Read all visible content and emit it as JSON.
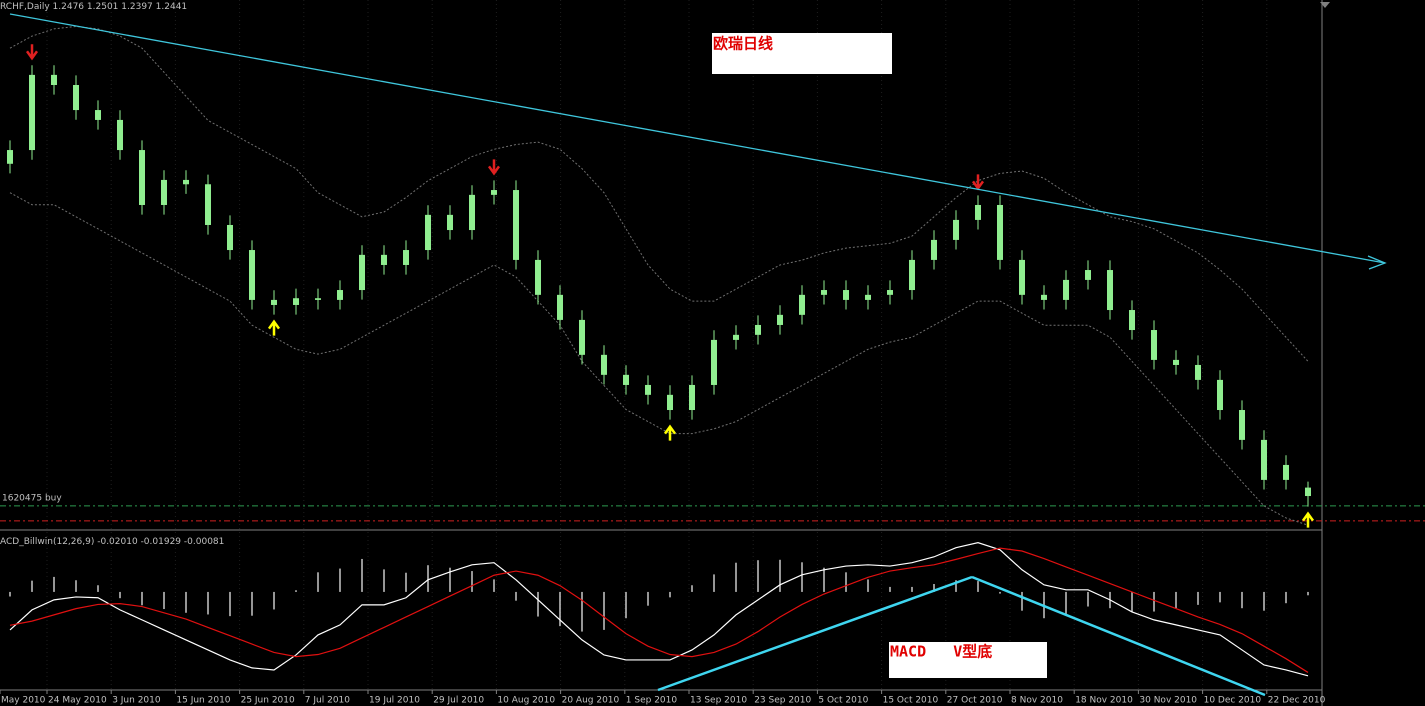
{
  "chart_data": [
    {
      "type": "candlestick",
      "title": "RCHF,Daily",
      "color": "#90ee90",
      "ylim": [
        1.23,
        1.445
      ],
      "open": [
        1.382,
        1.3877,
        1.4189,
        1.4147,
        1.4043,
        1.4002,
        1.3877,
        1.3649,
        1.3753,
        1.3735,
        1.3566,
        1.3462,
        1.3255,
        1.3234,
        1.3262,
        1.3255,
        1.3296,
        1.3442,
        1.34,
        1.3462,
        1.3608,
        1.3545,
        1.3691,
        1.3711,
        1.3421,
        1.3276,
        1.3172,
        1.3027,
        1.2944,
        1.2902,
        1.2861,
        1.2798,
        1.2902,
        1.3089,
        1.311,
        1.3151,
        1.3193,
        1.3276,
        1.3296,
        1.3255,
        1.3276,
        1.3296,
        1.3421,
        1.3504,
        1.3587,
        1.3649,
        1.3421,
        1.3276,
        1.3255,
        1.3338,
        1.3379,
        1.3213,
        1.313,
        1.3006,
        1.2985,
        1.2923,
        1.2798,
        1.2674,
        1.2508,
        1.2476
      ],
      "high": [
        1.3917,
        1.4229,
        1.4229,
        1.4187,
        1.4083,
        1.4042,
        1.3917,
        1.3793,
        1.3793,
        1.3775,
        1.3606,
        1.3502,
        1.3295,
        1.3302,
        1.3302,
        1.3336,
        1.3482,
        1.3482,
        1.3502,
        1.3648,
        1.3648,
        1.3731,
        1.3751,
        1.3751,
        1.3461,
        1.3316,
        1.3212,
        1.3067,
        1.2984,
        1.2942,
        1.2901,
        1.2942,
        1.3129,
        1.315,
        1.3191,
        1.3233,
        1.3316,
        1.3336,
        1.3336,
        1.3316,
        1.3336,
        1.3461,
        1.3544,
        1.3627,
        1.3689,
        1.3689,
        1.3461,
        1.3316,
        1.3378,
        1.3419,
        1.3419,
        1.3253,
        1.317,
        1.3046,
        1.3025,
        1.2963,
        1.2838,
        1.2714,
        1.261,
        1.2501
      ],
      "low": [
        1.378,
        1.3837,
        1.4107,
        1.4003,
        1.3962,
        1.3837,
        1.3609,
        1.3609,
        1.3695,
        1.3526,
        1.3422,
        1.3215,
        1.3194,
        1.3194,
        1.3215,
        1.3215,
        1.3256,
        1.336,
        1.336,
        1.3422,
        1.3505,
        1.3505,
        1.3651,
        1.3381,
        1.3236,
        1.3132,
        1.2987,
        1.2904,
        1.2862,
        1.2821,
        1.2758,
        1.2758,
        1.2862,
        1.3049,
        1.307,
        1.3111,
        1.3153,
        1.3236,
        1.3215,
        1.3215,
        1.3236,
        1.3256,
        1.3381,
        1.3464,
        1.3547,
        1.3381,
        1.3236,
        1.3215,
        1.3215,
        1.3298,
        1.3173,
        1.309,
        1.2966,
        1.2945,
        1.2883,
        1.2758,
        1.2634,
        1.2468,
        1.2468,
        1.2397
      ],
      "close": [
        1.3877,
        1.4189,
        1.4147,
        1.4043,
        1.4002,
        1.3877,
        1.3649,
        1.3753,
        1.3735,
        1.3566,
        1.3462,
        1.3255,
        1.3234,
        1.3262,
        1.3255,
        1.3296,
        1.3442,
        1.34,
        1.3462,
        1.3608,
        1.3545,
        1.3691,
        1.3711,
        1.3421,
        1.3276,
        1.3172,
        1.3027,
        1.2944,
        1.2902,
        1.2861,
        1.2798,
        1.2902,
        1.3089,
        1.311,
        1.3151,
        1.3193,
        1.3276,
        1.3296,
        1.3255,
        1.3276,
        1.3296,
        1.3421,
        1.3504,
        1.3587,
        1.3649,
        1.3421,
        1.3276,
        1.3255,
        1.3338,
        1.3379,
        1.3213,
        1.313,
        1.3006,
        1.2985,
        1.2923,
        1.2798,
        1.2674,
        1.2508,
        1.257,
        1.2441
      ],
      "bands": {
        "color": "#707070",
        "upper": [
          1.43,
          1.435,
          1.438,
          1.439,
          1.438,
          1.435,
          1.43,
          1.42,
          1.41,
          1.4,
          1.395,
          1.39,
          1.385,
          1.38,
          1.37,
          1.365,
          1.36,
          1.362,
          1.368,
          1.375,
          1.38,
          1.385,
          1.388,
          1.39,
          1.391,
          1.388,
          1.38,
          1.37,
          1.355,
          1.34,
          1.33,
          1.325,
          1.325,
          1.33,
          1.335,
          1.34,
          1.342,
          1.345,
          1.347,
          1.348,
          1.349,
          1.352,
          1.36,
          1.368,
          1.375,
          1.378,
          1.379,
          1.376,
          1.37,
          1.365,
          1.36,
          1.358,
          1.355,
          1.35,
          1.345,
          1.338,
          1.33,
          1.32,
          1.31,
          1.3
        ],
        "lower": [
          1.37,
          1.365,
          1.365,
          1.36,
          1.355,
          1.35,
          1.345,
          1.34,
          1.335,
          1.33,
          1.325,
          1.315,
          1.31,
          1.305,
          1.303,
          1.305,
          1.31,
          1.315,
          1.32,
          1.325,
          1.33,
          1.335,
          1.34,
          1.335,
          1.325,
          1.315,
          1.3,
          1.29,
          1.28,
          1.275,
          1.27,
          1.27,
          1.272,
          1.275,
          1.28,
          1.285,
          1.29,
          1.295,
          1.3,
          1.305,
          1.308,
          1.31,
          1.315,
          1.32,
          1.325,
          1.325,
          1.32,
          1.315,
          1.315,
          1.315,
          1.31,
          1.3,
          1.29,
          1.28,
          1.27,
          1.26,
          1.25,
          1.24,
          1.235,
          1.232
        ]
      },
      "levels": [
        {
          "label": "1620475 buy",
          "value": 1.24,
          "color": "#2e9b4f"
        },
        {
          "value": 1.2338,
          "color": "#d02020"
        }
      ],
      "down_arrows": [
        1,
        22,
        44
      ],
      "up_arrows": [
        12,
        30,
        59
      ],
      "annotation": "欧瑞日线",
      "xtick_labels": [
        "May 2010",
        "24 May 2010",
        "3 Jun 2010",
        "15 Jun 2010",
        "25 Jun 2010",
        "7 Jul 2010",
        "19 Jul 2010",
        "29 Jul 2010",
        "10 Aug 2010",
        "20 Aug 2010",
        "1 Sep 2010",
        "13 Sep 2010",
        "23 Sep 2010",
        "5 Oct 2010",
        "15 Oct 2010",
        "27 Oct 2010",
        "8 Nov 2010",
        "18 Nov 2010",
        "30 Nov 2010",
        "10 Dec 2010",
        "22 Dec 2010"
      ]
    },
    {
      "type": "macd",
      "title": "ACD_Billwin(12,26,9)",
      "legend_values": [
        "-0.02010",
        "-0.01929",
        "-0.00081"
      ],
      "ylim": [
        -0.0235,
        0.0134
      ],
      "lines": [
        {
          "color": "#ffffff",
          "values": [
            -0.0091,
            -0.0043,
            -0.0019,
            -0.0012,
            -0.0014,
            -0.0043,
            -0.0067,
            -0.0091,
            -0.0115,
            -0.0139,
            -0.0163,
            -0.0182,
            -0.0187,
            -0.0151,
            -0.0103,
            -0.0079,
            -0.0031,
            -0.0031,
            -0.0014,
            0.0029,
            0.0048,
            0.0065,
            0.007,
            0.0029,
            -0.0019,
            -0.0067,
            -0.0115,
            -0.0151,
            -0.0163,
            -0.0163,
            -0.0163,
            -0.0139,
            -0.0103,
            -0.0055,
            -0.0019,
            0.0017,
            0.0041,
            0.0053,
            0.0062,
            0.0065,
            0.0062,
            0.007,
            0.0084,
            0.0106,
            0.0118,
            0.0101,
            0.0053,
            0.0017,
            0.0005,
            0.0005,
            -0.0019,
            -0.0048,
            -0.0067,
            -0.0079,
            -0.0091,
            -0.0103,
            -0.0139,
            -0.0175,
            -0.0187,
            -0.0201
          ]
        },
        {
          "color": "#e01010",
          "values": [
            -0.008,
            -0.007,
            -0.0055,
            -0.004,
            -0.003,
            -0.0028,
            -0.0035,
            -0.005,
            -0.0065,
            -0.0085,
            -0.0105,
            -0.0125,
            -0.0145,
            -0.0155,
            -0.015,
            -0.0135,
            -0.011,
            -0.0085,
            -0.006,
            -0.0035,
            -0.001,
            0.0015,
            0.004,
            0.005,
            0.004,
            0.0015,
            -0.002,
            -0.006,
            -0.01,
            -0.013,
            -0.015,
            -0.0155,
            -0.0145,
            -0.0125,
            -0.0095,
            -0.006,
            -0.003,
            -0.0005,
            0.0015,
            0.0035,
            0.005,
            0.0058,
            0.0065,
            0.0078,
            0.0092,
            0.0105,
            0.0098,
            0.008,
            0.006,
            0.004,
            0.002,
            0.0,
            -0.002,
            -0.004,
            -0.006,
            -0.0078,
            -0.01,
            -0.013,
            -0.016,
            -0.01929
          ]
        }
      ],
      "histogram": {
        "color": "#c8c8c8",
        "values": [
          -0.0011,
          0.0027,
          0.0036,
          0.0028,
          0.0016,
          -0.0015,
          -0.0032,
          -0.0041,
          -0.005,
          -0.0054,
          -0.0058,
          -0.0057,
          -0.0042,
          0.0004,
          0.0047,
          0.0056,
          0.0079,
          0.0054,
          0.0046,
          0.0064,
          0.0058,
          0.005,
          0.003,
          -0.0021,
          -0.0059,
          -0.0082,
          -0.0095,
          -0.0091,
          -0.0063,
          -0.0033,
          -0.0013,
          0.0016,
          0.0042,
          0.007,
          0.0076,
          0.0077,
          0.0071,
          0.0058,
          0.0047,
          0.003,
          0.0012,
          0.0012,
          0.0019,
          0.0028,
          0.0026,
          -0.0004,
          -0.0045,
          -0.0063,
          -0.0055,
          -0.0035,
          -0.0039,
          -0.0048,
          -0.0047,
          -0.0039,
          -0.0031,
          -0.0025,
          -0.0039,
          -0.0045,
          -0.0027,
          -0.00081
        ]
      },
      "annotation": "MACD   V型底"
    }
  ]
}
